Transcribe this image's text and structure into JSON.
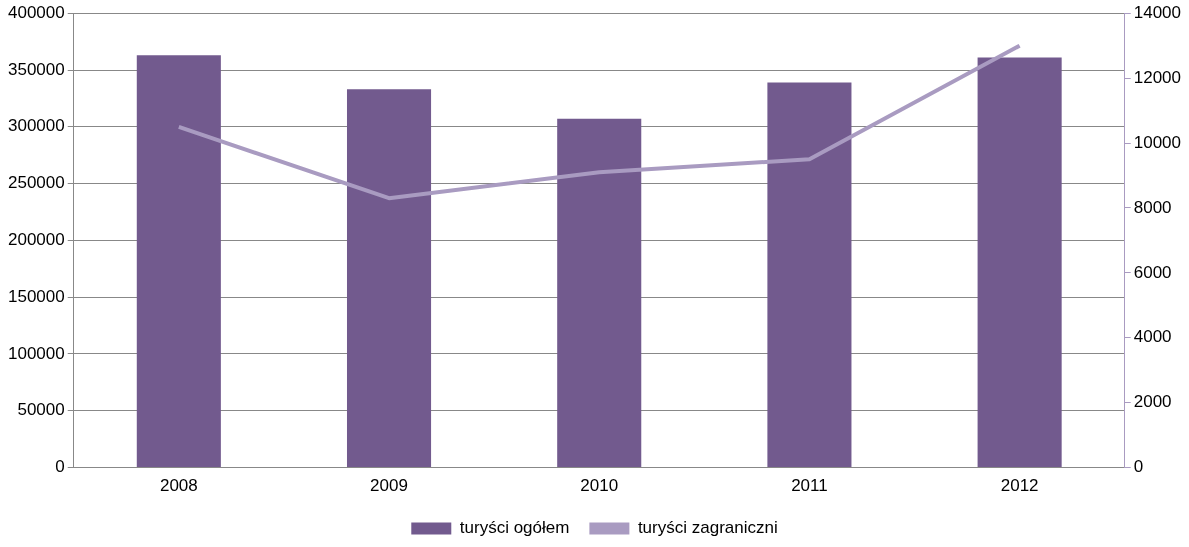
{
  "chart_data": {
    "type": "bar",
    "categories": [
      "2008",
      "2009",
      "2010",
      "2011",
      "2012"
    ],
    "series": [
      {
        "name": "turyści ogółem",
        "color": "#725a8e",
        "values": [
          363000,
          333000,
          307000,
          339000,
          361000
        ]
      },
      {
        "name": "turyści zagraniczni",
        "type": "line",
        "axis": "y2",
        "color": "#a99bc1",
        "values": [
          10500,
          8300,
          9100,
          9500,
          13000
        ]
      }
    ],
    "ylim": [
      0,
      400000
    ],
    "yticks": [
      0,
      50000,
      100000,
      150000,
      200000,
      250000,
      300000,
      350000,
      400000
    ],
    "y2lim": [
      0,
      14000
    ],
    "y2ticks": [
      0,
      2000,
      4000,
      6000,
      8000,
      10000,
      12000,
      14000
    ],
    "grid": "y",
    "legend": "bottom",
    "marker": "none"
  }
}
